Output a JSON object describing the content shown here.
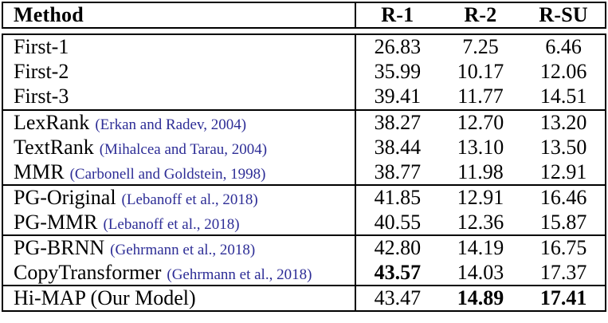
{
  "colors": {
    "text": "#000000",
    "citation": "#2d2d96",
    "border": "#000000",
    "background": "#ffffff"
  },
  "table": {
    "header": {
      "method_label": "Method",
      "columns": [
        "R-1",
        "R-2",
        "R-SU"
      ]
    },
    "groups": [
      {
        "rows": [
          {
            "method": "First-1",
            "cite": "",
            "values": [
              "26.83",
              "7.25",
              "6.46"
            ],
            "bold": [
              false,
              false,
              false
            ]
          },
          {
            "method": "First-2",
            "cite": "",
            "values": [
              "35.99",
              "10.17",
              "12.06"
            ],
            "bold": [
              false,
              false,
              false
            ]
          },
          {
            "method": "First-3",
            "cite": "",
            "values": [
              "39.41",
              "11.77",
              "14.51"
            ],
            "bold": [
              false,
              false,
              false
            ]
          }
        ]
      },
      {
        "rows": [
          {
            "method": "LexRank",
            "cite": "(Erkan and Radev, 2004)",
            "values": [
              "38.27",
              "12.70",
              "13.20"
            ],
            "bold": [
              false,
              false,
              false
            ]
          },
          {
            "method": "TextRank",
            "cite": "(Mihalcea and Tarau, 2004)",
            "values": [
              "38.44",
              "13.10",
              "13.50"
            ],
            "bold": [
              false,
              false,
              false
            ]
          },
          {
            "method": "MMR",
            "cite": "(Carbonell and Goldstein, 1998)",
            "values": [
              "38.77",
              "11.98",
              "12.91"
            ],
            "bold": [
              false,
              false,
              false
            ]
          }
        ]
      },
      {
        "rows": [
          {
            "method": "PG-Original",
            "cite": "(Lebanoff et al., 2018)",
            "values": [
              "41.85",
              "12.91",
              "16.46"
            ],
            "bold": [
              false,
              false,
              false
            ]
          },
          {
            "method": "PG-MMR",
            "cite": "(Lebanoff et al., 2018)",
            "values": [
              "40.55",
              "12.36",
              "15.87"
            ],
            "bold": [
              false,
              false,
              false
            ]
          }
        ]
      },
      {
        "rows": [
          {
            "method": "PG-BRNN",
            "cite": "(Gehrmann et al., 2018)",
            "values": [
              "42.80",
              "14.19",
              "16.75"
            ],
            "bold": [
              false,
              false,
              false
            ]
          },
          {
            "method": "CopyTransformer",
            "cite": "(Gehrmann et al., 2018)",
            "values": [
              "43.57",
              "14.03",
              "17.37"
            ],
            "bold": [
              true,
              false,
              false
            ]
          }
        ]
      },
      {
        "rows": [
          {
            "method": "Hi-MAP (Our Model)",
            "cite": "",
            "values": [
              "43.47",
              "14.89",
              "17.41"
            ],
            "bold": [
              false,
              true,
              true
            ]
          }
        ]
      }
    ]
  }
}
